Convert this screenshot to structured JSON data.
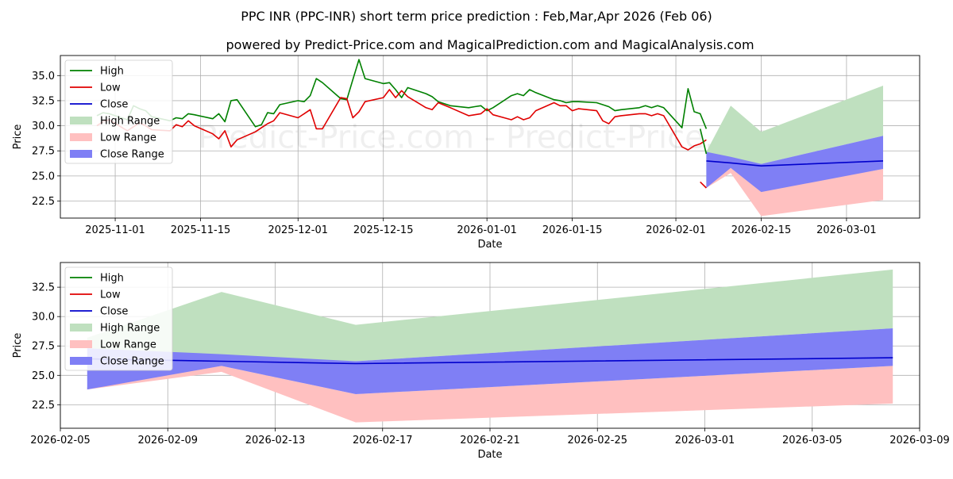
{
  "page": {
    "title": "PPC INR (PPC-INR) short term price prediction : Feb,Mar,Apr 2026 (Feb 06)",
    "subtitle": "powered by Predict-Price.com and MagicalPrediction.com and MagicalAnalysis.com",
    "watermark": "Predict-Price.com - Predict-Price.com"
  },
  "colors": {
    "high": "#008000",
    "low": "#e00000",
    "close": "#0000cc",
    "high_range": "#bfe0bf",
    "low_range": "#ffc0c0",
    "close_range": "#7f7ff5",
    "grid": "#b0b0b0"
  },
  "chart_data": [
    {
      "type": "line",
      "xlabel": "Date",
      "ylabel": "Price",
      "xlim": [
        "2025-10-23",
        "2026-03-13"
      ],
      "ylim": [
        20.8,
        37.0
      ],
      "yticks": [
        22.5,
        25.0,
        27.5,
        30.0,
        32.5,
        35.0
      ],
      "xticks": [
        "2025-11-01",
        "2025-11-15",
        "2025-12-01",
        "2025-12-15",
        "2026-01-01",
        "2026-01-15",
        "2026-02-01",
        "2026-02-15",
        "2026-03-01"
      ],
      "grid": true,
      "legend": "upper-left",
      "legend_entries": [
        "High",
        "Low",
        "Close",
        "High Range",
        "Low Range",
        "Close Range"
      ],
      "series": [
        {
          "name": "High",
          "x": [
            "2025-10-29",
            "2025-10-30",
            "2025-10-31",
            "2025-11-03",
            "2025-11-04",
            "2025-11-05",
            "2025-11-06",
            "2025-11-07",
            "2025-11-10",
            "2025-11-11",
            "2025-11-12",
            "2025-11-13",
            "2025-11-14",
            "2025-11-17",
            "2025-11-18",
            "2025-11-19",
            "2025-11-20",
            "2025-11-21",
            "2025-11-24",
            "2025-11-25",
            "2025-11-26",
            "2025-11-27",
            "2025-11-28",
            "2025-12-01",
            "2025-12-02",
            "2025-12-03",
            "2025-12-04",
            "2025-12-05",
            "2025-12-08",
            "2025-12-09",
            "2025-12-10",
            "2025-12-11",
            "2025-12-12",
            "2025-12-15",
            "2025-12-16",
            "2025-12-17",
            "2025-12-18",
            "2025-12-19",
            "2025-12-22",
            "2025-12-23",
            "2025-12-24",
            "2025-12-26",
            "2025-12-29",
            "2025-12-30",
            "2025-12-31",
            "2026-01-01",
            "2026-01-02",
            "2026-01-05",
            "2026-01-06",
            "2026-01-07",
            "2026-01-08",
            "2026-01-09",
            "2026-01-12",
            "2026-01-13",
            "2026-01-14",
            "2026-01-15",
            "2026-01-16",
            "2026-01-19",
            "2026-01-20",
            "2026-01-21",
            "2026-01-22",
            "2026-01-23",
            "2026-01-26",
            "2026-01-27",
            "2026-01-28",
            "2026-01-29",
            "2026-01-30",
            "2026-02-02",
            "2026-02-03",
            "2026-02-04",
            "2026-02-05",
            "2026-02-06"
          ],
          "y": [
            31.0,
            31.3,
            31.2,
            30.6,
            32.0,
            31.7,
            31.5,
            30.9,
            30.5,
            30.8,
            30.7,
            31.2,
            31.1,
            30.7,
            31.2,
            30.4,
            32.5,
            32.6,
            29.9,
            30.1,
            31.3,
            31.2,
            32.1,
            32.5,
            32.4,
            33.0,
            34.7,
            34.3,
            32.7,
            32.6,
            34.6,
            36.6,
            34.7,
            34.2,
            34.3,
            33.6,
            32.8,
            33.8,
            33.2,
            32.9,
            32.4,
            32.0,
            31.8,
            31.9,
            32.0,
            31.5,
            31.8,
            33.0,
            33.2,
            33.0,
            33.6,
            33.3,
            32.6,
            32.5,
            32.3,
            32.4,
            32.4,
            32.3,
            32.1,
            31.9,
            31.5,
            31.6,
            31.8,
            32.0,
            31.8,
            32.0,
            31.8,
            29.8,
            33.7,
            31.4,
            31.2,
            29.7
          ]
        },
        {
          "name": "Low",
          "x": [
            "2025-10-29",
            "2025-10-30",
            "2025-10-31",
            "2025-11-03",
            "2025-11-04",
            "2025-11-05",
            "2025-11-06",
            "2025-11-07",
            "2025-11-10",
            "2025-11-11",
            "2025-11-12",
            "2025-11-13",
            "2025-11-14",
            "2025-11-17",
            "2025-11-18",
            "2025-11-19",
            "2025-11-20",
            "2025-11-21",
            "2025-11-24",
            "2025-11-25",
            "2025-11-26",
            "2025-11-27",
            "2025-11-28",
            "2025-12-01",
            "2025-12-02",
            "2025-12-03",
            "2025-12-04",
            "2025-12-05",
            "2025-12-08",
            "2025-12-09",
            "2025-12-10",
            "2025-12-11",
            "2025-12-12",
            "2025-12-15",
            "2025-12-16",
            "2025-12-17",
            "2025-12-18",
            "2025-12-19",
            "2025-12-22",
            "2025-12-23",
            "2025-12-24",
            "2025-12-26",
            "2025-12-29",
            "2025-12-30",
            "2025-12-31",
            "2026-01-01",
            "2026-01-02",
            "2026-01-05",
            "2026-01-06",
            "2026-01-07",
            "2026-01-08",
            "2026-01-09",
            "2026-01-12",
            "2026-01-13",
            "2026-01-14",
            "2026-01-15",
            "2026-01-16",
            "2026-01-19",
            "2026-01-20",
            "2026-01-21",
            "2026-01-22",
            "2026-01-23",
            "2026-01-26",
            "2026-01-27",
            "2026-01-28",
            "2026-01-29",
            "2026-01-30",
            "2026-02-02",
            "2026-02-03",
            "2026-02-04",
            "2026-02-05",
            "2026-02-06"
          ],
          "y": [
            30.0,
            30.4,
            30.6,
            29.5,
            29.9,
            30.3,
            30.0,
            29.6,
            29.5,
            30.1,
            29.9,
            30.5,
            30.0,
            29.2,
            28.7,
            29.5,
            27.9,
            28.6,
            29.4,
            29.8,
            30.2,
            30.5,
            31.3,
            30.8,
            31.2,
            31.6,
            29.7,
            29.7,
            32.8,
            32.7,
            30.8,
            31.4,
            32.4,
            32.8,
            33.6,
            32.8,
            33.5,
            32.9,
            31.8,
            31.6,
            32.3,
            31.8,
            31.0,
            31.1,
            31.2,
            31.7,
            31.1,
            30.6,
            30.9,
            30.6,
            30.8,
            31.5,
            32.3,
            32.0,
            32.0,
            31.5,
            31.7,
            31.5,
            30.5,
            30.2,
            30.9,
            31.0,
            31.2,
            31.2,
            31.0,
            31.2,
            31.0,
            27.9,
            27.6,
            28.0,
            28.2,
            28.6
          ]
        },
        {
          "name": "Close",
          "x": [
            "2026-02-06",
            "2026-02-10",
            "2026-02-15",
            "2026-03-07"
          ],
          "y": [
            26.5,
            26.3,
            26.0,
            26.5
          ]
        }
      ],
      "tail": {
        "High": {
          "x": [
            "2026-02-05",
            "2026-02-06"
          ],
          "y": [
            29.7,
            27.2
          ]
        },
        "Low": {
          "x": [
            "2026-02-05",
            "2026-02-06"
          ],
          "y": [
            24.4,
            23.8
          ]
        }
      },
      "bands": [
        {
          "name": "High Range",
          "x": [
            "2026-02-06",
            "2026-02-10",
            "2026-02-15",
            "2026-03-07"
          ],
          "lower": [
            24.0,
            25.7,
            26.2,
            29.0
          ],
          "upper": [
            27.4,
            32.0,
            29.4,
            34.0
          ]
        },
        {
          "name": "Low Range",
          "x": [
            "2026-02-06",
            "2026-02-10",
            "2026-02-15",
            "2026-03-07"
          ],
          "lower": [
            23.8,
            25.3,
            21.0,
            22.6
          ],
          "upper": [
            24.1,
            25.8,
            23.5,
            25.7
          ]
        },
        {
          "name": "Close Range",
          "x": [
            "2026-02-06",
            "2026-02-10",
            "2026-02-15",
            "2026-03-07"
          ],
          "lower": [
            23.8,
            25.8,
            23.4,
            25.7
          ],
          "upper": [
            27.4,
            26.9,
            26.2,
            29.0
          ]
        }
      ]
    },
    {
      "type": "line",
      "xlabel": "Date",
      "ylabel": "Price",
      "xlim": [
        "2026-02-05",
        "2026-03-09"
      ],
      "ylim": [
        20.5,
        34.6
      ],
      "yticks": [
        22.5,
        25.0,
        27.5,
        30.0,
        32.5
      ],
      "xticks": [
        "2026-02-05",
        "2026-02-09",
        "2026-02-13",
        "2026-02-17",
        "2026-02-21",
        "2026-02-25",
        "2026-03-01",
        "2026-03-05",
        "2026-03-09"
      ],
      "grid": true,
      "legend": "upper-left",
      "legend_entries": [
        "High",
        "Low",
        "Close",
        "High Range",
        "Low Range",
        "Close Range"
      ],
      "series": [
        {
          "name": "Close",
          "x": [
            "2026-02-06",
            "2026-02-11",
            "2026-02-16",
            "2026-03-08"
          ],
          "y": [
            26.4,
            26.2,
            26.0,
            26.5
          ]
        }
      ],
      "bands": [
        {
          "name": "High Range",
          "x": [
            "2026-02-06",
            "2026-02-11",
            "2026-02-16",
            "2026-03-08"
          ],
          "lower": [
            26.9,
            26.5,
            26.2,
            29.0
          ],
          "upper": [
            28.2,
            32.1,
            29.3,
            34.0
          ]
        },
        {
          "name": "Low Range",
          "x": [
            "2026-02-06",
            "2026-02-11",
            "2026-02-16",
            "2026-03-08"
          ],
          "lower": [
            23.8,
            25.3,
            21.0,
            22.6
          ],
          "upper": [
            24.0,
            25.8,
            23.4,
            25.8
          ]
        },
        {
          "name": "Close Range",
          "x": [
            "2026-02-06",
            "2026-02-11",
            "2026-02-16",
            "2026-03-08"
          ],
          "lower": [
            23.8,
            25.8,
            23.4,
            25.8
          ],
          "upper": [
            27.3,
            26.8,
            26.2,
            29.0
          ]
        }
      ]
    }
  ]
}
